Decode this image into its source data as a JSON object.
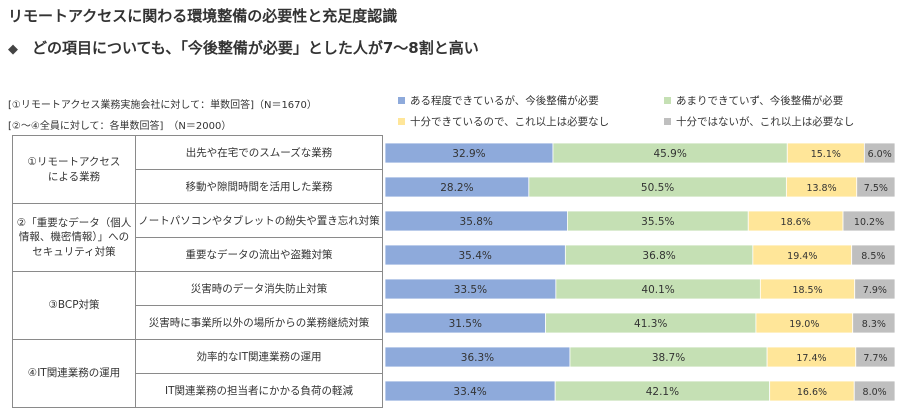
{
  "title": "リモートアクセスに関わる環境整備の必要性と充足度認識",
  "subtitle": "どの項目についても、「今後整備が必要」とした人が7～8割と高い",
  "notes": [
    "[①リモートアクセス業務実施会社に対して：単数回答]（N＝1670）",
    "[②～④全員に対して：各単数回答]　（N＝2000）"
  ],
  "colors": {
    "s1": "#8eaadb",
    "s2": "#c5e0b4",
    "s3": "#ffe699",
    "s4": "#bfbfbf"
  },
  "chart_data": {
    "type": "bar",
    "orientation": "horizontal",
    "stacked": true,
    "xlim": [
      0,
      100
    ],
    "unit": "%",
    "legend_position": "top-right",
    "groups": [
      {
        "label": "①リモートアクセス\nによる業務",
        "items": [
          0,
          1
        ]
      },
      {
        "label": "②「重要なデータ（個人\n情報、機密情報）」への\nセキュリティ対策",
        "items": [
          2,
          3
        ]
      },
      {
        "label": "③BCP対策",
        "items": [
          4,
          5
        ]
      },
      {
        "label": "④IT関連業務の運用",
        "items": [
          6,
          7
        ]
      }
    ],
    "categories": [
      "出先や在宅でのスムーズな業務",
      "移動や隙間時間を活用した業務",
      "ノートパソコンやタブレットの紛失や置き忘れ対策",
      "重要なデータの流出や盗難対策",
      "災害時のデータ消失防止対策",
      "災害時に事業所以外の場所からの業務継続対策",
      "効率的なIT関連業務の運用",
      "IT関連業務の担当者にかかる負荷の軽減"
    ],
    "series": [
      {
        "name": "ある程度できているが、今後整備が必要",
        "values": [
          32.9,
          28.2,
          35.8,
          35.4,
          33.5,
          31.5,
          36.3,
          33.4
        ]
      },
      {
        "name": "あまりできていず、今後整備が必要",
        "values": [
          45.9,
          50.5,
          35.5,
          36.8,
          40.1,
          41.3,
          38.7,
          42.1
        ]
      },
      {
        "name": "十分できているので、これ以上は必要なし",
        "values": [
          15.1,
          13.8,
          18.6,
          19.4,
          18.5,
          19.0,
          17.4,
          16.6
        ]
      },
      {
        "name": "十分ではないが、これ以上は必要なし",
        "values": [
          6.0,
          7.5,
          10.2,
          8.5,
          7.9,
          8.3,
          7.7,
          8.0
        ]
      }
    ],
    "labels": [
      [
        "32.9%",
        "45.9%",
        "15.1%",
        "6.0%"
      ],
      [
        "28.2%",
        "50.5%",
        "13.8%",
        "7.5%"
      ],
      [
        "35.8%",
        "35.5%",
        "18.6%",
        "10.2%"
      ],
      [
        "35.4%",
        "36.8%",
        "19.4%",
        "8.5%"
      ],
      [
        "33.5%",
        "40.1%",
        "18.5%",
        "7.9%"
      ],
      [
        "31.5%",
        "41.3%",
        "19.0%",
        "8.3%"
      ],
      [
        "36.3%",
        "38.7%",
        "17.4%",
        "7.7%"
      ],
      [
        "33.4%",
        "42.1%",
        "16.6%",
        "8.0%"
      ]
    ]
  }
}
